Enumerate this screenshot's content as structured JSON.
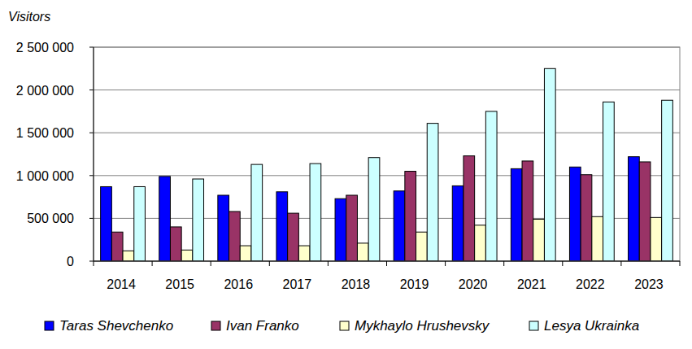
{
  "chart_data": {
    "type": "bar",
    "y_label": "Visitors",
    "categories": [
      "2014",
      "2015",
      "2016",
      "2017",
      "2018",
      "2019",
      "2020",
      "2021",
      "2022",
      "2023"
    ],
    "series": [
      {
        "name": "Taras Shevchenko",
        "color": "#0000ff",
        "values": [
          870000,
          990000,
          770000,
          810000,
          730000,
          820000,
          880000,
          1080000,
          1100000,
          1220000
        ]
      },
      {
        "name": "Ivan Franko",
        "color": "#993366",
        "values": [
          340000,
          400000,
          580000,
          560000,
          770000,
          1050000,
          1230000,
          1170000,
          1010000,
          1160000
        ]
      },
      {
        "name": "Mykhaylo Hrushevsky",
        "color": "#ffffcc",
        "values": [
          120000,
          130000,
          180000,
          180000,
          210000,
          340000,
          420000,
          490000,
          520000,
          510000
        ]
      },
      {
        "name": "Lesya Ukrainka",
        "color": "#ccffff",
        "values": [
          870000,
          960000,
          1130000,
          1140000,
          1210000,
          1610000,
          1750000,
          2250000,
          1860000,
          1880000
        ]
      }
    ],
    "ylim": [
      0,
      2500000
    ],
    "yticks": [
      0,
      {
        "value": 500000,
        "label": "500 000"
      },
      {
        "value": 1000000,
        "label": "1 000 000"
      },
      {
        "value": 1500000,
        "label": "1 500 000"
      },
      {
        "value": 2000000,
        "label": "2 000 000"
      },
      {
        "value": 2500000,
        "label": "2 500 000"
      }
    ],
    "grid": true,
    "legend": "bottom"
  }
}
